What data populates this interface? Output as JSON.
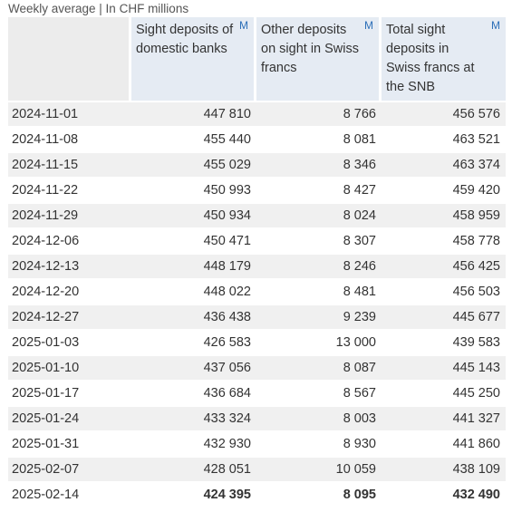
{
  "caption": "Weekly average | In CHF millions",
  "columns": [
    {
      "label": "Sight deposits of domestic banks",
      "marker": "M"
    },
    {
      "label": "Other deposits on sight in Swiss francs",
      "marker": "M"
    },
    {
      "label": "Total sight deposits in Swiss francs at the SNB",
      "marker": "M"
    }
  ],
  "rows": [
    {
      "date": "2024-11-01",
      "values": [
        "447 810",
        "8 766",
        "456 576"
      ]
    },
    {
      "date": "2024-11-08",
      "values": [
        "455 440",
        "8 081",
        "463 521"
      ]
    },
    {
      "date": "2024-11-15",
      "values": [
        "455 029",
        "8 346",
        "463 374"
      ]
    },
    {
      "date": "2024-11-22",
      "values": [
        "450 993",
        "8 427",
        "459 420"
      ]
    },
    {
      "date": "2024-11-29",
      "values": [
        "450 934",
        "8 024",
        "458 959"
      ]
    },
    {
      "date": "2024-12-06",
      "values": [
        "450 471",
        "8 307",
        "458 778"
      ]
    },
    {
      "date": "2024-12-13",
      "values": [
        "448 179",
        "8 246",
        "456 425"
      ]
    },
    {
      "date": "2024-12-20",
      "values": [
        "448 022",
        "8 481",
        "456 503"
      ]
    },
    {
      "date": "2024-12-27",
      "values": [
        "436 438",
        "9 239",
        "445 677"
      ]
    },
    {
      "date": "2025-01-03",
      "values": [
        "426 583",
        "13 000",
        "439 583"
      ]
    },
    {
      "date": "2025-01-10",
      "values": [
        "437 056",
        "8 087",
        "445 143"
      ]
    },
    {
      "date": "2025-01-17",
      "values": [
        "436 684",
        "8 567",
        "445 250"
      ]
    },
    {
      "date": "2025-01-24",
      "values": [
        "433 324",
        "8 003",
        "441 327"
      ]
    },
    {
      "date": "2025-01-31",
      "values": [
        "432 930",
        "8 930",
        "441 860"
      ]
    },
    {
      "date": "2025-02-07",
      "values": [
        "428 051",
        "10 059",
        "438 109"
      ]
    },
    {
      "date": "2025-02-14",
      "values": [
        "424 395",
        "8 095",
        "432 490"
      ]
    }
  ],
  "colors": {
    "header_bg": "#e5ebf3",
    "row_alt_bg": "#f0f0f0",
    "link": "#2c6fb8"
  }
}
